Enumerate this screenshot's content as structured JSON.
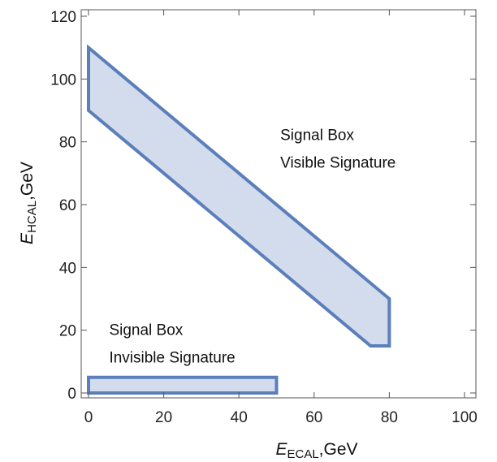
{
  "chart_data": {
    "type": "area",
    "xlabel": {
      "main": "E",
      "sub": "ECAL",
      "unit": ",GeV"
    },
    "ylabel": {
      "main": "E",
      "sub": "HCAL",
      "unit": ",GeV"
    },
    "xlim": [
      0,
      100
    ],
    "ylim": [
      0,
      120
    ],
    "xticks": [
      0,
      20,
      40,
      60,
      80,
      100
    ],
    "yticks": [
      0,
      20,
      40,
      60,
      80,
      100,
      120
    ],
    "grid": false,
    "colors": {
      "fill": "#d3dcec",
      "stroke": "#5b7fbb",
      "frame": "#555555"
    },
    "regions": [
      {
        "polygon": [
          [
            0,
            110
          ],
          [
            0,
            90
          ],
          [
            75,
            15
          ],
          [
            80,
            15
          ],
          [
            80,
            30
          ]
        ]
      },
      {
        "polygon": [
          [
            0,
            0
          ],
          [
            50,
            0
          ],
          [
            50,
            5
          ],
          [
            0,
            5
          ]
        ]
      }
    ],
    "annotations": [
      {
        "lines": [
          "Signal Box",
          "Visible Signature"
        ],
        "x": 51,
        "y": 80.5
      },
      {
        "lines": [
          "Signal Box",
          "Invisible Signature"
        ],
        "x": 5.5,
        "y": 18.5
      }
    ]
  }
}
